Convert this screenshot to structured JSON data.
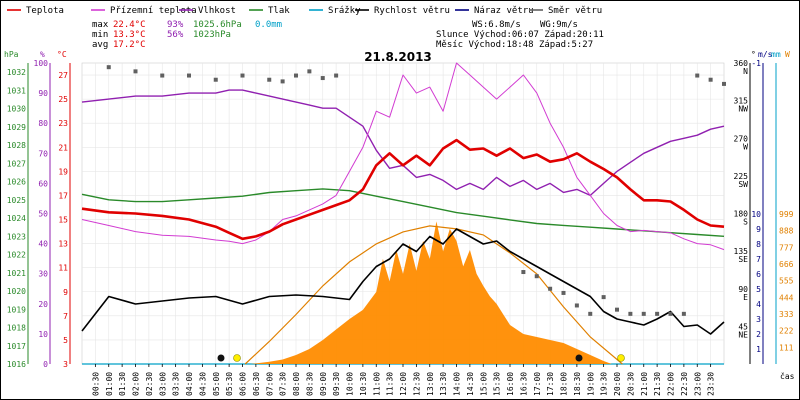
{
  "chart_data": {
    "type": "line",
    "title": "21.8.2013",
    "legend": [
      {
        "name": "Teplota",
        "color": "#e00000"
      },
      {
        "name": "Přízemní teplota",
        "color": "#d23cd2"
      },
      {
        "name": "Vlhkost",
        "color": "#9020b0"
      },
      {
        "name": "Tlak",
        "color": "#2a8a2a"
      },
      {
        "name": "Srážky",
        "color": "#00a0c8"
      },
      {
        "name": "Rychlost větru",
        "color": "#000000"
      },
      {
        "name": "Náraz větru",
        "color": "#000080"
      },
      {
        "name": "Směr větru",
        "color": "#606060"
      }
    ],
    "stats": {
      "max_label": "max",
      "min_label": "min",
      "avg_label": "avg",
      "max_temp": "22.4°C",
      "max_hum": "93%",
      "max_press": "1025.6hPa",
      "max_rain": "0.0mm",
      "min_temp": "13.3°C",
      "min_hum": "56%",
      "min_press": "1023hPa",
      "avg_temp": "17.2°C",
      "ws": "WS:6.8m/s",
      "wg": "WG:9m/s",
      "sun": "Slunce Východ:06:07   Západ:20:11",
      "moon": "Měsíc  Východ:18:48   Západ:5:27"
    },
    "axes": {
      "hpa_unit": "hPa",
      "hum_unit": "%",
      "temp_unit": "°C",
      "dir_unit": "°",
      "ms_unit": "m/s",
      "mm_unit": "mm",
      "w_unit": "W",
      "time_label": "čas",
      "hpa_ticks": [
        "1032",
        "1031",
        "1030",
        "1029",
        "1028",
        "1027",
        "1026",
        "1025",
        "1024",
        "1023",
        "1022",
        "1021",
        "1020",
        "1019",
        "1018",
        "1017",
        "1016"
      ],
      "hum_ticks": [
        "100",
        "90",
        "80",
        "70",
        "60",
        "50",
        "40",
        "30",
        "20",
        "10",
        "0"
      ],
      "temp_ticks": [
        "27",
        "25",
        "23",
        "21",
        "19",
        "17",
        "15",
        "13",
        "11",
        "9",
        "7",
        "5",
        "3"
      ],
      "dir_ticks": [
        {
          "deg": "360",
          "dir": "N"
        },
        {
          "deg": "315",
          "dir": "NW"
        },
        {
          "deg": "270",
          "dir": "W"
        },
        {
          "deg": "225",
          "dir": "SW"
        },
        {
          "deg": "180",
          "dir": "S"
        },
        {
          "deg": "135",
          "dir": "SE"
        },
        {
          "deg": "90",
          "dir": "E"
        },
        {
          "deg": "45",
          "dir": "NE"
        }
      ],
      "ms_ticks": [
        "10",
        "9",
        "8",
        "7",
        "6",
        "5",
        "4",
        "3",
        "2",
        "1"
      ],
      "ms_top": "-1",
      "w_ticks": [
        "999",
        "888",
        "777",
        "666",
        "555",
        "444",
        "333",
        "222",
        "111"
      ],
      "time_ticks": [
        "00:30",
        "01:00",
        "01:30",
        "02:00",
        "02:30",
        "03:00",
        "03:30",
        "04:00",
        "04:30",
        "05:00",
        "05:30",
        "06:00",
        "06:30",
        "07:00",
        "07:30",
        "08:00",
        "08:30",
        "09:00",
        "09:30",
        "10:00",
        "10:30",
        "11:00",
        "11:30",
        "12:00",
        "12:30",
        "13:00",
        "13:30",
        "14:00",
        "14:30",
        "15:00",
        "15:30",
        "16:00",
        "16:30",
        "17:00",
        "17:30",
        "18:00",
        "18:30",
        "19:00",
        "19:30",
        "20:00",
        "20:30",
        "21:00",
        "21:30",
        "22:00",
        "22:30",
        "23:00",
        "23:30"
      ]
    },
    "ranges": {
      "temp": [
        3,
        28
      ],
      "humidity": [
        0,
        100
      ],
      "pressure": [
        1016,
        1032.5
      ],
      "wind": [
        0,
        10
      ],
      "solar": [
        0,
        999
      ],
      "time_h": [
        0,
        24
      ]
    },
    "series": [
      {
        "name": "Teplota",
        "unit": "°C",
        "x": [
          0,
          1,
          2,
          3,
          4,
          5,
          5.5,
          6,
          6.5,
          7,
          7.5,
          8,
          8.5,
          9,
          9.5,
          10,
          10.5,
          11,
          11.5,
          12,
          12.5,
          13,
          13.5,
          14,
          14.5,
          15,
          15.5,
          16,
          16.5,
          17,
          17.5,
          18,
          18.5,
          19,
          19.5,
          20,
          20.5,
          21,
          21.5,
          22,
          22.5,
          23,
          23.5,
          24
        ],
        "y": [
          15.9,
          15.6,
          15.5,
          15.3,
          15.0,
          14.4,
          13.9,
          13.4,
          13.6,
          14.0,
          14.6,
          15.0,
          15.4,
          15.8,
          16.2,
          16.6,
          17.5,
          19.5,
          20.5,
          19.5,
          20.3,
          19.5,
          20.9,
          21.6,
          20.8,
          20.9,
          20.3,
          20.9,
          20.1,
          20.4,
          19.8,
          20.0,
          20.5,
          19.8,
          19.2,
          18.5,
          17.5,
          16.6,
          16.6,
          16.5,
          15.8,
          15.0,
          14.5,
          14.4
        ]
      },
      {
        "name": "Přízemní teplota",
        "unit": "°C",
        "x": [
          0,
          1,
          2,
          3,
          4,
          5,
          5.5,
          6,
          6.5,
          7,
          7.5,
          8,
          8.5,
          9,
          9.5,
          10,
          10.5,
          11,
          11.5,
          12,
          12.5,
          13,
          13.5,
          14,
          14.5,
          15,
          15.5,
          16,
          16.5,
          17,
          17.5,
          18,
          18.5,
          19,
          19.5,
          20,
          20.5,
          21,
          21.5,
          22,
          22.5,
          23,
          23.5,
          24
        ],
        "y": [
          15.0,
          14.5,
          14.0,
          13.7,
          13.6,
          13.3,
          13.2,
          13.0,
          13.3,
          14.0,
          15.0,
          15.3,
          15.8,
          16.3,
          17.0,
          19.0,
          21.0,
          24.0,
          23.5,
          27.0,
          25.5,
          26.0,
          24.0,
          28.0,
          27.0,
          26.0,
          25.0,
          26.0,
          27.0,
          25.5,
          23.0,
          21.0,
          18.5,
          17.0,
          15.5,
          14.5,
          14.0,
          14.1,
          14.0,
          13.9,
          13.4,
          13.0,
          12.9,
          12.5
        ]
      },
      {
        "name": "Vlhkost",
        "unit": "%",
        "x": [
          0,
          1,
          2,
          3,
          4,
          5,
          5.5,
          6,
          6.5,
          7,
          7.5,
          8,
          8.5,
          9,
          9.5,
          10,
          10.5,
          11,
          11.5,
          12,
          12.5,
          13,
          13.5,
          14,
          14.5,
          15,
          15.5,
          16,
          16.5,
          17,
          17.5,
          18,
          18.5,
          19,
          19.5,
          20,
          20.5,
          21,
          21.5,
          22,
          22.5,
          23,
          23.5,
          24
        ],
        "y": [
          87,
          88,
          89,
          89,
          90,
          90,
          91,
          91,
          90,
          89,
          88,
          87,
          86,
          85,
          85,
          82,
          79,
          71,
          65,
          66,
          62,
          63,
          61,
          58,
          60,
          58,
          62,
          59,
          61,
          58,
          60,
          57,
          58,
          56,
          60,
          64,
          67,
          70,
          72,
          74,
          75,
          76,
          78,
          79
        ]
      },
      {
        "name": "Tlak",
        "unit": "hPa",
        "x": [
          0,
          1,
          2,
          3,
          4,
          5,
          6,
          7,
          8,
          9,
          10,
          11,
          12,
          13,
          14,
          15,
          16,
          17,
          18,
          19,
          20,
          21,
          22,
          23,
          24
        ],
        "y": [
          1025.3,
          1025.0,
          1024.9,
          1024.9,
          1025.0,
          1025.1,
          1025.2,
          1025.4,
          1025.5,
          1025.6,
          1025.5,
          1025.2,
          1024.9,
          1024.6,
          1024.3,
          1024.1,
          1023.9,
          1023.7,
          1023.6,
          1023.5,
          1023.4,
          1023.3,
          1023.2,
          1023.1,
          1023.0
        ]
      },
      {
        "name": "Rychlost větru",
        "unit": "m/s",
        "x": [
          0,
          1,
          2,
          3,
          4,
          5,
          6,
          7,
          8,
          9,
          10,
          10.5,
          11,
          11.5,
          12,
          12.5,
          13,
          13.5,
          14,
          14.5,
          15,
          15.5,
          16,
          16.5,
          17,
          17.5,
          18,
          18.5,
          19,
          19.5,
          20,
          20.5,
          21,
          21.5,
          22,
          22.5,
          23,
          23.5,
          24
        ],
        "y": [
          2.0,
          3.5,
          3.0,
          3.2,
          3.4,
          3.5,
          3.3,
          3.5,
          3.6,
          3.5,
          3.3,
          4.2,
          5.0,
          5.5,
          6.0,
          6.2,
          6.8,
          6.5,
          7.0,
          6.8,
          6.5,
          6.6,
          6.2,
          6.0,
          5.5,
          5.0,
          4.5,
          4.0,
          3.5,
          3.0,
          2.8,
          2.6,
          2.5,
          2.6,
          3.0,
          2.6,
          2.5,
          2.4,
          2.5
        ]
      },
      {
        "name": "Náraz větru",
        "unit": "m/s",
        "x": [
          0,
          1,
          2,
          3,
          4,
          5,
          6,
          7,
          8,
          9,
          10,
          10.5,
          11,
          11.5,
          12,
          12.5,
          13,
          13.5,
          14,
          14.5,
          15,
          15.5,
          16,
          16.5,
          17,
          17.5,
          18,
          18.5,
          19,
          19.5,
          20,
          20.5,
          21,
          21.5,
          22,
          22.5,
          23,
          23.5,
          24
        ],
        "y": [
          2.2,
          4.5,
          4.0,
          4.2,
          4.4,
          4.5,
          4.0,
          4.5,
          4.6,
          4.5,
          4.3,
          5.5,
          6.5,
          7.0,
          8.0,
          7.5,
          8.5,
          8.0,
          9.0,
          8.5,
          8.0,
          8.2,
          7.5,
          7.0,
          6.5,
          6.0,
          5.5,
          5.0,
          4.5,
          3.5,
          3.0,
          2.8,
          2.6,
          3.0,
          3.5,
          2.5,
          2.6,
          2.0,
          2.8
        ]
      },
      {
        "name": "Směr větru",
        "unit": "°",
        "x": [
          1,
          2,
          3,
          4,
          5,
          6,
          7,
          7.5,
          8,
          8.5,
          9,
          9.5,
          16.5,
          17,
          17.5,
          18,
          18.5,
          19,
          19.5,
          20,
          20.5,
          21,
          21.5,
          22,
          22.5,
          23,
          23.5,
          24
        ],
        "y": [
          355,
          350,
          345,
          345,
          340,
          345,
          340,
          338,
          345,
          350,
          342,
          345,
          110,
          105,
          90,
          85,
          70,
          60,
          80,
          65,
          60,
          60,
          60,
          60,
          60,
          345,
          340,
          335
        ]
      },
      {
        "name": "Solar",
        "unit": "W",
        "x": [
          6.3,
          7,
          7.5,
          8,
          8.5,
          9,
          9.5,
          10,
          10.5,
          11,
          11.25,
          11.5,
          11.75,
          12,
          12.25,
          12.5,
          12.75,
          13,
          13.25,
          13.5,
          13.75,
          14,
          14.25,
          14.5,
          14.75,
          15,
          15.25,
          15.5,
          15.75,
          16,
          16.5,
          17,
          17.5,
          18,
          18.5,
          19,
          19.5,
          19.8
        ],
        "y": [
          0,
          15,
          30,
          60,
          100,
          160,
          230,
          300,
          360,
          480,
          700,
          550,
          760,
          600,
          800,
          620,
          820,
          700,
          950,
          750,
          900,
          820,
          650,
          760,
          600,
          520,
          450,
          400,
          330,
          260,
          200,
          180,
          160,
          140,
          100,
          60,
          20,
          0
        ]
      },
      {
        "name": "Solar max",
        "unit": "W",
        "x": [
          6.1,
          7,
          8,
          9,
          10,
          11,
          12,
          13,
          14,
          15,
          16,
          17,
          18,
          19,
          20.2
        ],
        "y": [
          0,
          150,
          330,
          520,
          680,
          800,
          880,
          920,
          900,
          860,
          740,
          600,
          380,
          180,
          0
        ]
      }
    ]
  }
}
